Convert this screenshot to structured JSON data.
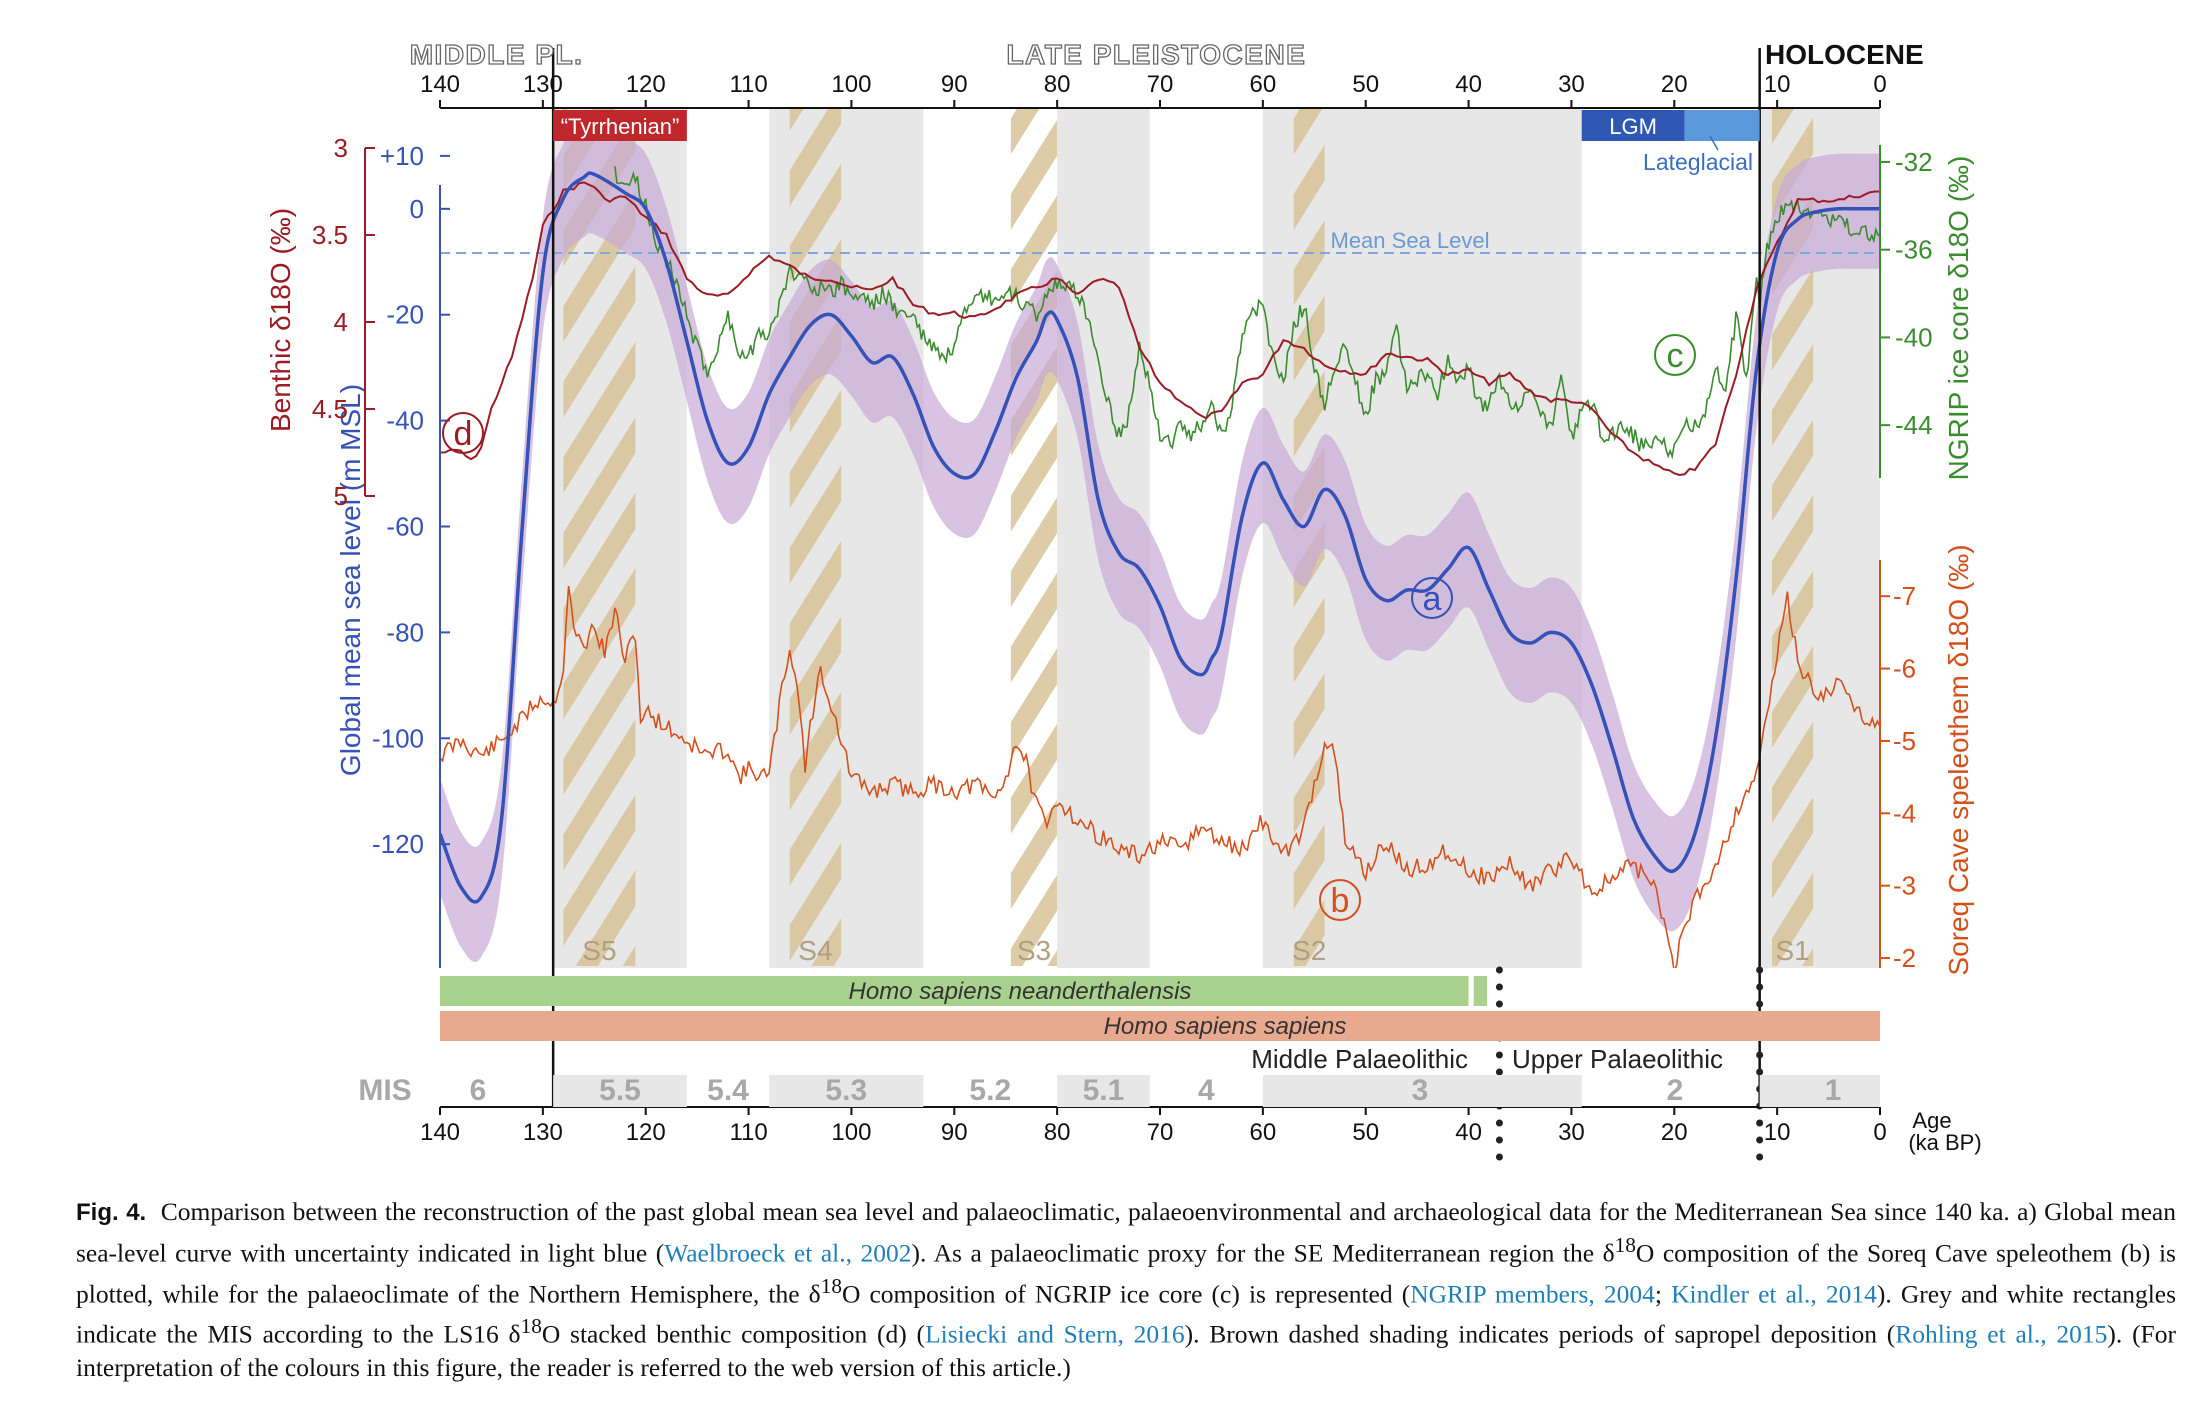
{
  "chart_data": {
    "type": "line",
    "x_range_ka": [
      140,
      0
    ],
    "x_ticks_ka": [
      140,
      130,
      120,
      110,
      100,
      90,
      80,
      70,
      60,
      50,
      40,
      30,
      20,
      10,
      0
    ],
    "x_tick_labels": [
      "140",
      "130",
      "120",
      "110",
      "100",
      "90",
      "80",
      "70",
      "60",
      "50",
      "40",
      "30",
      "20",
      "10",
      "0"
    ],
    "xlabel": "Age (ka BP)",
    "xlabel_line1": "Age",
    "xlabel_line2": "(ka BP)",
    "epochs": [
      {
        "label": "MIDDLE PL.",
        "from": 140,
        "to": 129
      },
      {
        "label": "LATE PLEISTOCENE",
        "from": 129,
        "to": 11.7
      },
      {
        "label": "HOLOCENE",
        "from": 11.7,
        "to": 0
      }
    ],
    "boundary_lines_ka": [
      129,
      11.7
    ],
    "sea_level": {
      "axis_label": "Global mean sea level (m MSL)",
      "color": "#3552b8",
      "ylim": [
        -133,
        13
      ],
      "ticks": [
        10,
        0,
        -20,
        -40,
        -60,
        -80,
        -100,
        -120
      ],
      "tick_labels": [
        "+10",
        "0",
        "-20",
        "-40",
        "-60",
        "-80",
        "-100",
        "-120"
      ],
      "mean_sea_level_label": "Mean Sea Level",
      "curve_label": "a",
      "x": [
        140,
        138,
        136,
        134,
        132,
        130,
        128,
        126,
        125,
        122,
        120,
        118,
        116,
        114,
        112,
        110,
        108,
        106,
        104,
        102,
        100,
        98,
        96,
        94,
        92,
        90,
        88,
        86,
        84,
        82,
        81,
        80,
        78,
        76,
        74,
        72,
        70,
        68,
        66,
        65,
        64,
        62,
        60,
        58,
        56,
        54,
        52,
        50,
        48,
        46,
        44,
        42,
        40,
        38,
        36,
        34,
        32,
        30,
        28,
        26,
        24,
        22,
        20,
        18,
        16,
        14,
        12,
        10,
        8,
        6,
        4,
        2,
        0
      ],
      "values": [
        -118,
        -128,
        -130,
        -115,
        -60,
        -12,
        2,
        6,
        6.5,
        3,
        0,
        -10,
        -25,
        -40,
        -48,
        -45,
        -35,
        -28,
        -22,
        -20,
        -24,
        -29,
        -28,
        -35,
        -45,
        -50,
        -50,
        -42,
        -32,
        -25,
        -20,
        -21,
        -32,
        -55,
        -65,
        -68,
        -75,
        -85,
        -88,
        -85,
        -80,
        -58,
        -48,
        -55,
        -60,
        -53,
        -58,
        -70,
        -74,
        -72,
        -72,
        -68,
        -64,
        -72,
        -80,
        -82,
        -80,
        -82,
        -90,
        -102,
        -115,
        -122,
        -125,
        -118,
        -100,
        -70,
        -30,
        -8,
        -2,
        -0.5,
        0,
        0,
        0
      ]
    },
    "benthic": {
      "axis_label": "Benthic δ18O (‰)",
      "color": "#9b1c24",
      "ylim": [
        5,
        3
      ],
      "ticks": [
        3,
        3.5,
        4,
        4.5,
        5
      ],
      "tick_labels": [
        "3",
        "3.5",
        "4",
        "4.5",
        "5"
      ],
      "curve_label": "d",
      "x": [
        140,
        138,
        137,
        136,
        135,
        133,
        131,
        130,
        129,
        128,
        126,
        125,
        124,
        122,
        120,
        118,
        116,
        114,
        112,
        110,
        108,
        106,
        104,
        102,
        100,
        98,
        96,
        94,
        92,
        90,
        88,
        86,
        84,
        82,
        80,
        78,
        76,
        74,
        72,
        70,
        68,
        66,
        64,
        62,
        60,
        58,
        56,
        54,
        52,
        50,
        48,
        46,
        44,
        42,
        40,
        38,
        36,
        34,
        32,
        30,
        28,
        26,
        24,
        22,
        20,
        18,
        16,
        14,
        12,
        10,
        8,
        6,
        4,
        2,
        0
      ],
      "values": [
        4.75,
        4.74,
        4.8,
        4.72,
        4.5,
        4.2,
        3.75,
        3.45,
        3.35,
        3.25,
        3.2,
        3.22,
        3.3,
        3.28,
        3.4,
        3.5,
        3.75,
        3.85,
        3.85,
        3.72,
        3.62,
        3.68,
        3.75,
        3.75,
        3.8,
        3.82,
        3.75,
        3.9,
        3.95,
        3.95,
        3.98,
        3.92,
        3.85,
        3.8,
        3.75,
        3.85,
        3.75,
        3.8,
        4.15,
        4.35,
        4.45,
        4.55,
        4.52,
        4.35,
        4.3,
        4.1,
        4.15,
        4.25,
        4.28,
        4.3,
        4.18,
        4.2,
        4.22,
        4.3,
        4.28,
        4.35,
        4.3,
        4.4,
        4.45,
        4.45,
        4.5,
        4.65,
        4.75,
        4.82,
        4.88,
        4.85,
        4.7,
        4.3,
        3.8,
        3.55,
        3.3,
        3.3,
        3.3,
        3.27,
        3.25
      ]
    },
    "ngrip": {
      "axis_label": "NGRIP ice core δ18O (‰)",
      "color": "#3a8c2f",
      "ylim": [
        -46.5,
        -31
      ],
      "ticks": [
        -32,
        -36,
        -40,
        -44
      ],
      "tick_labels": [
        "-32",
        "-36",
        "-40",
        "-44"
      ],
      "curve_label": "c",
      "x": [
        123,
        122,
        121,
        120,
        119,
        118,
        117,
        116,
        115,
        114,
        113,
        112,
        111,
        110,
        109,
        108,
        107,
        106,
        105,
        104,
        103,
        102,
        101,
        100,
        99,
        98,
        97,
        96,
        95,
        94,
        93,
        92,
        91,
        90,
        89,
        88,
        87,
        86,
        85,
        84,
        83,
        82,
        81,
        80,
        79,
        78,
        77,
        76,
        75,
        74,
        73,
        72,
        71,
        70,
        69,
        68,
        67,
        66,
        65,
        64,
        63,
        62,
        61,
        60,
        59,
        58,
        57,
        56,
        55,
        54,
        53,
        52,
        51,
        50,
        49,
        48,
        47,
        46,
        45,
        44,
        43,
        42,
        41,
        40,
        39,
        38,
        37,
        36,
        35,
        34,
        33,
        32,
        31,
        30,
        29,
        28,
        27,
        26,
        25,
        24,
        23,
        22,
        21,
        20,
        19,
        18,
        17,
        16,
        15,
        14,
        13,
        12,
        11.7,
        11,
        10,
        9,
        8,
        7,
        6,
        5,
        4,
        3,
        2,
        1,
        0
      ],
      "values": [
        -32.5,
        -33,
        -32.8,
        -34,
        -35.5,
        -36.5,
        -37.5,
        -39,
        -40.5,
        -41.5,
        -40.5,
        -39,
        -40.5,
        -41,
        -39.5,
        -40,
        -38.5,
        -37,
        -37.2,
        -37.5,
        -37.8,
        -38,
        -37.5,
        -38.2,
        -38,
        -38.5,
        -38,
        -38.5,
        -39,
        -39,
        -40,
        -40.5,
        -41,
        -40.5,
        -39,
        -38.5,
        -38,
        -38.5,
        -38,
        -38.2,
        -38.5,
        -39,
        -38,
        -37.5,
        -37.8,
        -38,
        -39,
        -41,
        -43,
        -44.5,
        -43.5,
        -40.5,
        -42,
        -44.5,
        -44.8,
        -44,
        -44.5,
        -44,
        -43,
        -44.5,
        -43,
        -40,
        -39,
        -38.5,
        -41,
        -42,
        -39.5,
        -38.5,
        -41.5,
        -43,
        -41.5,
        -40.5,
        -42,
        -43.5,
        -42,
        -41.5,
        -39.5,
        -42.5,
        -42,
        -41.5,
        -42.5,
        -41,
        -42,
        -41.5,
        -43,
        -43,
        -42,
        -43,
        -43.5,
        -42,
        -43.5,
        -44,
        -42,
        -44.5,
        -43.5,
        -43,
        -44.5,
        -44.5,
        -44,
        -44.5,
        -45,
        -44.8,
        -45,
        -45.2,
        -44,
        -44,
        -43.5,
        -41.5,
        -42.5,
        -39,
        -42,
        -37,
        -38.5,
        -36,
        -34.5,
        -34,
        -34,
        -34.2,
        -34.4,
        -34.6,
        -34.8,
        -35,
        -35.2,
        -35.3,
        -35.4
      ]
    },
    "soreq": {
      "axis_label": "Soreq Cave speleothem δ18O (‰)",
      "color": "#d4511c",
      "ylim": [
        -1.6,
        -7.5
      ],
      "ticks": [
        -7,
        -6,
        -5,
        -4,
        -3,
        -2
      ],
      "tick_labels": [
        "-7",
        "-6",
        "-5",
        "-4",
        "-3",
        "-2"
      ],
      "curve_label": "b",
      "x": [
        140,
        138,
        136,
        134,
        132,
        131,
        130,
        129,
        128,
        127.5,
        127,
        126,
        125,
        124,
        123,
        122,
        121,
        120.5,
        120,
        118,
        116,
        114,
        112,
        111,
        110,
        108,
        107,
        106,
        105,
        104.5,
        104,
        103,
        102,
        101,
        100,
        98,
        96,
        94,
        92,
        90,
        88,
        86,
        85,
        84,
        83,
        82,
        81,
        80,
        78,
        76,
        74,
        72,
        70,
        68,
        66,
        64,
        62,
        60,
        58,
        56,
        55,
        54,
        53,
        52,
        50,
        48,
        46,
        44,
        42,
        40,
        38,
        36,
        34,
        32,
        30,
        28,
        26,
        24,
        22,
        21,
        20,
        19,
        18,
        16,
        14,
        13,
        12,
        11,
        10,
        9,
        8,
        6,
        4,
        2,
        0
      ],
      "values": [
        -4.8,
        -5,
        -4.8,
        -5,
        -5.3,
        -5.5,
        -5.6,
        -5.5,
        -6,
        -7.2,
        -6.5,
        -6.3,
        -6.6,
        -6.2,
        -6.8,
        -6.1,
        -6.5,
        -5.3,
        -5.4,
        -5.2,
        -5,
        -4.8,
        -4.9,
        -4.5,
        -4.6,
        -4.5,
        -5.5,
        -6.3,
        -5.5,
        -4.6,
        -5.2,
        -6,
        -5.5,
        -5,
        -4.5,
        -4.3,
        -4.4,
        -4.3,
        -4.4,
        -4.3,
        -4.4,
        -4.2,
        -4.5,
        -5,
        -4.7,
        -4.1,
        -3.8,
        -4.2,
        -3.9,
        -3.7,
        -3.5,
        -3.4,
        -3.6,
        -3.5,
        -3.8,
        -3.6,
        -3.5,
        -3.9,
        -3.4,
        -3.8,
        -4.4,
        -5,
        -4.8,
        -3.6,
        -3.2,
        -3.6,
        -3.2,
        -3.3,
        -3.5,
        -3.2,
        -3.1,
        -3.3,
        -3.0,
        -3.2,
        -3.4,
        -2.9,
        -3.1,
        -3.3,
        -3.0,
        -2.5,
        -1.9,
        -2.4,
        -2.8,
        -3.3,
        -4,
        -4.3,
        -4.6,
        -5.3,
        -6.2,
        -7.0,
        -6.1,
        -5.6,
        -5.8,
        -5.4,
        -5.2
      ]
    },
    "sapropels": [
      {
        "label": "S5",
        "from": 128,
        "to": 121
      },
      {
        "label": "S4",
        "from": 106,
        "to": 101
      },
      {
        "label": "S3",
        "from": 84.5,
        "to": 80
      },
      {
        "label": "S2",
        "from": 57,
        "to": 54
      },
      {
        "label": "S1",
        "from": 10.5,
        "to": 6.5
      }
    ],
    "mis_label": "MIS",
    "mis": [
      {
        "label": "6",
        "from": 140,
        "to": 129,
        "shade": false
      },
      {
        "label": "5.5",
        "from": 129,
        "to": 116,
        "shade": true
      },
      {
        "label": "5.4",
        "from": 116,
        "to": 108,
        "shade": false
      },
      {
        "label": "5.3",
        "from": 108,
        "to": 93,
        "shade": true
      },
      {
        "label": "5.2",
        "from": 93,
        "to": 80,
        "shade": false
      },
      {
        "label": "5.1",
        "from": 80,
        "to": 71,
        "shade": true
      },
      {
        "label": "4",
        "from": 71,
        "to": 60,
        "shade": false
      },
      {
        "label": "3",
        "from": 60,
        "to": 29,
        "shade": true
      },
      {
        "label": "2",
        "from": 29,
        "to": 11.7,
        "shade": false
      },
      {
        "label": "1",
        "from": 11.7,
        "to": 0,
        "shade": true
      }
    ],
    "top_boxes": [
      {
        "label": "“Tyrrhenian”",
        "from": 129,
        "to": 116,
        "color": "#c0272d"
      },
      {
        "label": "LGM",
        "from": 29,
        "to": 19,
        "color": "#2f57b4"
      },
      {
        "label": "",
        "from": 19,
        "to": 11.7,
        "color": "#5b98dc"
      }
    ],
    "lateglacial_label": "Lateglacial",
    "hominin_bars": [
      {
        "label": "Homo sapiens neanderthalensis",
        "from": 140,
        "to": 40,
        "color": "#a9d18e",
        "extra_from": 39.5,
        "extra_to": 38.2
      },
      {
        "label": "Homo sapiens sapiens",
        "from": 140,
        "to": 0,
        "color": "#e8a98e"
      }
    ],
    "palaeolithic": [
      {
        "label": "Middle Palaeolithic",
        "to": 37
      },
      {
        "label": "Upper Palaeolithic",
        "from": 37,
        "to": 11.7
      }
    ],
    "dotted_lines_ka": [
      37,
      11.7
    ]
  },
  "caption": {
    "fig": "Fig. 4.",
    "s1": "Comparison between the reconstruction of the past global mean sea level and palaeoclimatic, palaeoenvironmental and archaeological data for the Mediterranean Sea since 140 ka. a) Global mean sea-level curve with uncertainty indicated in light blue (",
    "r1": "Waelbroeck et al., 2002",
    "s2": "). As a palaeoclimatic proxy for the SE Mediterranean region the δ",
    "s3": "O composition of the Soreq Cave speleothem (b) is plotted, while for the palaeoclimate of the Northern Hemisphere, the δ",
    "s4": "O composition of NGRIP ice core (c) is represented (",
    "r2": "NGRIP members, 2004",
    "s5": "; ",
    "r3": "Kindler et al., 2014",
    "s6": "). Grey and white rectangles indicate the MIS according to the LS16 δ",
    "s7": "O stacked benthic composition (d) (",
    "r4": "Lisiecki and Stern, 2016",
    "s8": "). Brown dashed shading indicates periods of sapropel deposition (",
    "r5": "Rohling et al., 2015",
    "s9": "). (For interpretation of the colours in this figure, the reader is referred to the web version of this article.)",
    "sup": "18"
  }
}
